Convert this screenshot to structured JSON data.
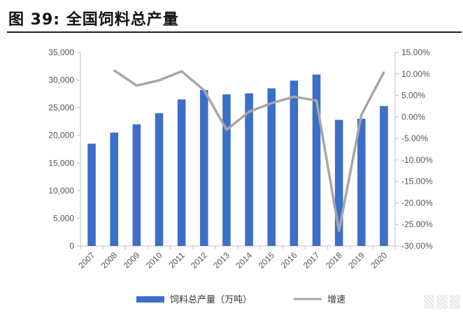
{
  "header": {
    "title": "图 39:  全国饲料总产量"
  },
  "chart_data": {
    "type": "bar+line",
    "categories": [
      "2007",
      "2008",
      "2009",
      "2010",
      "2011",
      "2012",
      "2013",
      "2014",
      "2015",
      "2016",
      "2017",
      "2018",
      "2019",
      "2020"
    ],
    "series": [
      {
        "name": "饲料总产量（万吨）",
        "type": "bar",
        "axis": "left",
        "color": "#3b6fc9",
        "values": [
          18500,
          20500,
          22000,
          24000,
          26500,
          28200,
          27400,
          27600,
          28500,
          29900,
          31000,
          22800,
          23000,
          25300
        ]
      },
      {
        "name": "增速",
        "type": "line",
        "axis": "right",
        "color": "#a6a6a6",
        "values": [
          null,
          10.8,
          7.3,
          8.5,
          10.6,
          6.2,
          -3.0,
          1.2,
          3.2,
          4.7,
          3.8,
          -26.5,
          0.5,
          10.4
        ]
      }
    ],
    "y_left": {
      "min": 0,
      "max": 35000,
      "step": 5000,
      "tick_labels": [
        "0",
        "5,000",
        "10,000",
        "15,000",
        "20,000",
        "25,000",
        "30,000",
        "35,000"
      ]
    },
    "y_right": {
      "min": -30,
      "max": 15,
      "step": 5,
      "tick_labels": [
        "-30.00%",
        "-25.00%",
        "-20.00%",
        "-15.00%",
        "-10.00%",
        "-5.00%",
        "0.00%",
        "5.00%",
        "10.00%",
        "15.00%"
      ]
    },
    "grid": false,
    "legend_position": "bottom"
  }
}
